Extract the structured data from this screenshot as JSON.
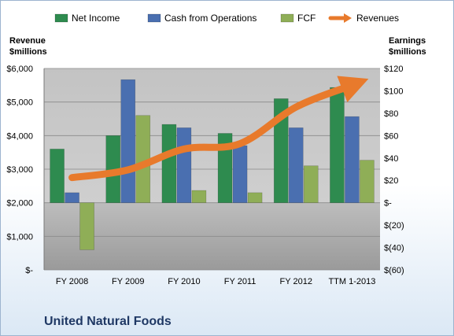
{
  "chart_data": {
    "type": "bar",
    "title": "United Natural Foods",
    "categories": [
      "FY 2008",
      "FY 2009",
      "FY 2010",
      "FY 2011",
      "FY 2012",
      "TTM 1-2013"
    ],
    "series": [
      {
        "name": "Net Income",
        "axis": "right",
        "color": "#2e8b4f",
        "values": [
          48,
          60,
          70,
          62,
          93,
          103
        ]
      },
      {
        "name": "Cash from Operations",
        "axis": "right",
        "color": "#4a6fb0",
        "values": [
          9,
          110,
          67,
          51,
          67,
          77
        ]
      },
      {
        "name": "FCF",
        "axis": "right",
        "color": "#8fae57",
        "values": [
          -42,
          78,
          11,
          9,
          33,
          38
        ]
      },
      {
        "name": "Revenues",
        "axis": "left",
        "type": "line",
        "color": "#e87a2c",
        "values": [
          2750,
          2980,
          3600,
          3760,
          4850,
          5500
        ]
      }
    ],
    "left_axis": {
      "title_line1": "Revenue",
      "title_line2": "$millions",
      "ticks": [
        {
          "v": 0,
          "label": "$-"
        },
        {
          "v": 1000,
          "label": "$1,000"
        },
        {
          "v": 2000,
          "label": "$2,000"
        },
        {
          "v": 3000,
          "label": "$3,000"
        },
        {
          "v": 4000,
          "label": "$4,000"
        },
        {
          "v": 5000,
          "label": "$5,000"
        },
        {
          "v": 6000,
          "label": "$6,000"
        }
      ],
      "range": [
        0,
        6000
      ]
    },
    "right_axis": {
      "title_line1": "Earnings",
      "title_line2": "$millions",
      "ticks": [
        {
          "v": -60,
          "label": "$(60)"
        },
        {
          "v": -40,
          "label": "$(40)"
        },
        {
          "v": -20,
          "label": "$(20)"
        },
        {
          "v": 0,
          "label": "$-"
        },
        {
          "v": 20,
          "label": "$20"
        },
        {
          "v": 40,
          "label": "$40"
        },
        {
          "v": 60,
          "label": "$60"
        },
        {
          "v": 80,
          "label": "$80"
        },
        {
          "v": 100,
          "label": "$100"
        },
        {
          "v": 120,
          "label": "$120"
        }
      ],
      "range": [
        -60,
        120
      ]
    },
    "grid": true,
    "legend_position": "top"
  }
}
